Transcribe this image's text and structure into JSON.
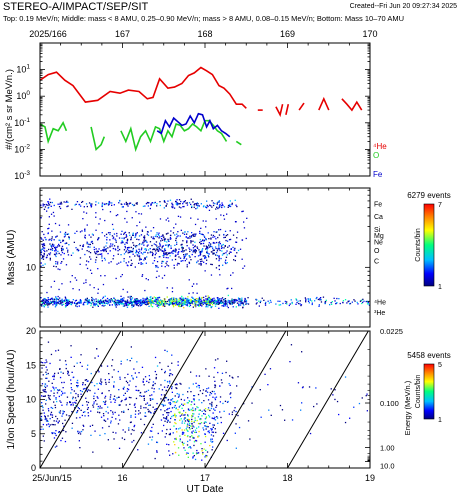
{
  "header": {
    "title": "STEREO-A/IMPACT/SEP/SIT",
    "created": "Created--Fri Jun 20 09:27:34 2025",
    "subtitle": "Top: 0.19 MeV/n; Middle: mass < 8 AMU, 0.25–0.90 MeV/n; mass > 8 AMU, 0.08–0.15 MeV/n; Bottom: Mass 10–70 AMU"
  },
  "top_axis": {
    "ticks": [
      {
        "label": "2025/166",
        "day": 15
      },
      {
        "label": "167",
        "day": 16
      },
      {
        "label": "168",
        "day": 17
      },
      {
        "label": "169",
        "day": 18
      },
      {
        "label": "170",
        "day": 19
      }
    ]
  },
  "bottom_axis": {
    "xlabel": "UT Date",
    "ticks": [
      {
        "label": "25/Jun/15",
        "day": 15
      },
      {
        "label": "16",
        "day": 16
      },
      {
        "label": "17",
        "day": 17
      },
      {
        "label": "18",
        "day": 18
      },
      {
        "label": "19",
        "day": 19
      }
    ]
  },
  "colors": {
    "He": "#e60000",
    "O": "#22cc22",
    "Fe": "#0000cc"
  },
  "chart_data": [
    {
      "type": "line",
      "panel": "top",
      "ylabel": "#/(cm² s sr MeV/n.)",
      "yscale": "log",
      "ylim": [
        0.001,
        100
      ],
      "xlim": [
        15,
        19
      ],
      "ytick_labels": [
        {
          "label": "10",
          "sup": "-3",
          "value": 0.001
        },
        {
          "label": "10",
          "sup": "-2",
          "value": 0.01
        },
        {
          "label": "10",
          "sup": "-1",
          "value": 0.1
        },
        {
          "label": "10",
          "sup": "0",
          "value": 1
        },
        {
          "label": "10",
          "sup": "1",
          "value": 10
        }
      ],
      "series": [
        {
          "name": "⁴He",
          "color_key": "He",
          "segments": [
            [
              [
                15.0,
                4.0
              ],
              [
                15.1,
                6.5
              ],
              [
                15.2,
                8.0
              ],
              [
                15.3,
                4.0
              ],
              [
                15.4,
                2.5
              ],
              [
                15.55,
                0.6
              ],
              [
                15.7,
                0.7
              ],
              [
                15.85,
                1.5
              ],
              [
                15.97,
                1.3
              ],
              [
                16.07,
                1.7
              ],
              [
                16.2,
                1.5
              ],
              [
                16.3,
                0.8
              ],
              [
                16.37,
                0.9
              ],
              [
                16.45,
                4.5
              ],
              [
                16.55,
                2.0
              ],
              [
                16.63,
                2.2
              ],
              [
                16.72,
                3.0
              ],
              [
                16.8,
                6.0
              ],
              [
                16.87,
                7.5
              ],
              [
                16.95,
                12.0
              ],
              [
                17.02,
                9.0
              ],
              [
                17.09,
                6.5
              ],
              [
                17.17,
                2.5
              ],
              [
                17.23,
                2.0
              ],
              [
                17.3,
                1.2
              ],
              [
                17.38,
                0.5
              ],
              [
                17.45,
                0.5
              ],
              [
                17.5,
                0.35
              ]
            ],
            [
              [
                17.64,
                0.3
              ],
              [
                17.7,
                0.3
              ]
            ],
            [
              [
                17.86,
                0.4
              ],
              [
                17.91,
                0.2
              ],
              [
                17.94,
                0.5
              ]
            ],
            [
              [
                17.98,
                0.2
              ],
              [
                18.01,
                0.5
              ]
            ],
            [
              [
                18.14,
                0.3
              ],
              [
                18.2,
                0.55
              ]
            ],
            [
              [
                18.38,
                0.3
              ],
              [
                18.44,
                0.8
              ],
              [
                18.5,
                0.3
              ]
            ],
            [
              [
                18.66,
                0.8
              ],
              [
                18.72,
                0.5
              ],
              [
                18.78,
                0.3
              ],
              [
                18.84,
                0.6
              ],
              [
                18.9,
                0.3
              ]
            ]
          ]
        },
        {
          "name": "O",
          "color_key": "O",
          "segments": [
            [
              [
                15.0,
                0.09
              ],
              [
                15.06,
                0.07
              ],
              [
                15.1,
                0.02
              ],
              [
                15.16,
                0.06
              ],
              [
                15.22,
                0.05
              ],
              [
                15.28,
                0.1
              ],
              [
                15.32,
                0.05
              ]
            ],
            [
              [
                15.62,
                0.07
              ],
              [
                15.68,
                0.01
              ],
              [
                15.74,
                0.015
              ],
              [
                15.78,
                0.03
              ]
            ],
            [
              [
                15.98,
                0.05
              ],
              [
                16.04,
                0.02
              ],
              [
                16.1,
                0.06
              ],
              [
                16.16,
                0.01
              ],
              [
                16.22,
                0.03
              ],
              [
                16.28,
                0.05
              ],
              [
                16.34,
                0.02
              ],
              [
                16.4,
                0.07
              ],
              [
                16.45,
                0.06
              ],
              [
                16.5,
                0.02
              ],
              [
                16.55,
                0.05
              ],
              [
                16.6,
                0.03
              ],
              [
                16.65,
                0.09
              ],
              [
                16.7,
                0.08
              ],
              [
                16.75,
                0.05
              ],
              [
                16.8,
                0.06
              ],
              [
                16.85,
                0.09
              ],
              [
                16.9,
                0.07
              ],
              [
                16.95,
                0.05
              ],
              [
                17.0,
                0.12
              ],
              [
                17.05,
                0.12
              ],
              [
                17.1,
                0.08
              ],
              [
                17.15,
                0.05
              ],
              [
                17.2,
                0.04
              ],
              [
                17.26,
                0.02
              ]
            ],
            [
              [
                17.38,
                0.02
              ],
              [
                17.44,
                0.015
              ]
            ]
          ]
        },
        {
          "name": "Fe",
          "color_key": "Fe",
          "segments": [
            [
              [
                16.42,
                0.05
              ],
              [
                16.47,
                0.04
              ],
              [
                16.52,
                0.12
              ],
              [
                16.57,
                0.07
              ],
              [
                16.62,
                0.15
              ],
              [
                16.67,
                0.11
              ],
              [
                16.72,
                0.08
              ],
              [
                16.77,
                0.09
              ],
              [
                16.82,
                0.18
              ],
              [
                16.87,
                0.1
              ],
              [
                16.92,
                0.22
              ],
              [
                16.97,
                0.2
              ],
              [
                17.02,
                0.07
              ],
              [
                17.06,
                0.12
              ],
              [
                17.1,
                0.06
              ],
              [
                17.15,
                0.08
              ],
              [
                17.2,
                0.05
              ],
              [
                17.25,
                0.04
              ],
              [
                17.3,
                0.03
              ]
            ]
          ]
        }
      ],
      "legend": [
        "⁴He",
        "O",
        "Fe"
      ]
    },
    {
      "type": "scatter",
      "panel": "middle",
      "ylabel": "Mass (AMU)",
      "yscale": "log",
      "ylim": [
        2.0,
        85
      ],
      "xlim": [
        15,
        19
      ],
      "ytick_labels": [
        {
          "label": "10",
          "value": 10
        }
      ],
      "species_labels": [
        {
          "label": "Fe",
          "mass": 56
        },
        {
          "label": "Ca",
          "mass": 40
        },
        {
          "label": "Si",
          "mass": 28
        },
        {
          "label": "Mg",
          "mass": 24
        },
        {
          "label": "Ne",
          "mass": 20
        },
        {
          "label": "O",
          "mass": 16
        },
        {
          "label": "C",
          "mass": 12
        },
        {
          "label": "⁴He",
          "mass": 4
        },
        {
          "label": "³He",
          "mass": 3
        }
      ],
      "colorbar": {
        "events": "6279 events",
        "label": "Counts/bin",
        "ticks": [
          {
            "label": "7",
            "value": 7
          },
          {
            "label": "1",
            "value": 1
          }
        ]
      }
    },
    {
      "type": "scatter",
      "panel": "bottom",
      "ylabel": "1/Ion Speed (hour/AU)",
      "ylim": [
        0,
        20
      ],
      "xlim": [
        15,
        19
      ],
      "ytick_labels": [
        {
          "label": "0",
          "value": 0
        },
        {
          "label": "5",
          "value": 5
        },
        {
          "label": "10",
          "value": 10
        },
        {
          "label": "15",
          "value": 15
        },
        {
          "label": "20",
          "value": 20
        }
      ],
      "energy_axis": {
        "label": "Energy (MeV/n.)",
        "ticks": [
          {
            "label": "0.0225",
            "value": 0.0225
          },
          {
            "label": "0.100",
            "value": 0.1
          },
          {
            "label": "1.00",
            "value": 1.0
          },
          {
            "label": "10.0",
            "value": 10.0
          }
        ]
      },
      "velocity_dispersion_lines": [
        {
          "x0": 15.0,
          "x1": 15.98
        },
        {
          "x0": 16.0,
          "x1": 16.98
        },
        {
          "x0": 17.0,
          "x1": 17.98
        },
        {
          "x0": 18.0,
          "x1": 18.98
        }
      ],
      "colorbar": {
        "events": "5458 events",
        "label": "Counts/bin",
        "ticks": [
          {
            "label": "5",
            "value": 5
          },
          {
            "label": "1",
            "value": 1
          }
        ]
      }
    }
  ]
}
